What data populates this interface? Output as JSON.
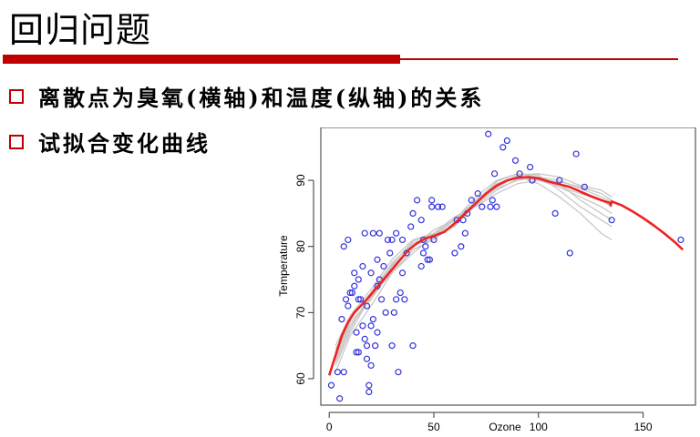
{
  "slide": {
    "title": "回归问题",
    "bullets": [
      "离散点为臭氧(横轴)和温度(纵轴)的关系",
      "试拟合变化曲线"
    ]
  },
  "colors": {
    "accent": "#c00000",
    "points": "#3333dd",
    "fit": "#ee2222",
    "bootstrap": "#c8c8c8"
  },
  "chart_data": {
    "type": "scatter",
    "xlabel": "Ozone",
    "ylabel": "Temperature",
    "xlim": [
      -4,
      175
    ],
    "ylim": [
      56,
      98
    ],
    "xticks": [
      0,
      50,
      100,
      150
    ],
    "yticks": [
      60,
      70,
      80,
      90
    ],
    "points": [
      [
        1,
        59
      ],
      [
        4,
        61
      ],
      [
        5,
        57
      ],
      [
        6,
        69
      ],
      [
        7,
        61
      ],
      [
        7,
        80
      ],
      [
        8,
        72
      ],
      [
        9,
        81
      ],
      [
        9,
        71
      ],
      [
        10,
        73
      ],
      [
        11,
        73
      ],
      [
        12,
        74
      ],
      [
        12,
        76
      ],
      [
        13,
        64
      ],
      [
        13,
        67
      ],
      [
        14,
        72
      ],
      [
        14,
        75
      ],
      [
        14,
        64
      ],
      [
        15,
        72
      ],
      [
        16,
        68
      ],
      [
        16,
        77
      ],
      [
        17,
        66
      ],
      [
        17,
        82
      ],
      [
        18,
        65
      ],
      [
        18,
        71
      ],
      [
        18,
        63
      ],
      [
        19,
        59
      ],
      [
        19,
        58
      ],
      [
        20,
        62
      ],
      [
        20,
        68
      ],
      [
        20,
        76
      ],
      [
        21,
        69
      ],
      [
        21,
        82
      ],
      [
        22,
        65
      ],
      [
        23,
        67
      ],
      [
        23,
        74
      ],
      [
        23,
        78
      ],
      [
        24,
        75
      ],
      [
        24,
        82
      ],
      [
        25,
        72
      ],
      [
        26,
        77
      ],
      [
        27,
        70
      ],
      [
        28,
        81
      ],
      [
        29,
        79
      ],
      [
        30,
        81
      ],
      [
        30,
        65
      ],
      [
        31,
        70
      ],
      [
        32,
        82
      ],
      [
        32,
        72
      ],
      [
        33,
        61
      ],
      [
        34,
        73
      ],
      [
        35,
        76
      ],
      [
        35,
        81
      ],
      [
        36,
        72
      ],
      [
        37,
        79
      ],
      [
        39,
        83
      ],
      [
        40,
        65
      ],
      [
        40,
        85
      ],
      [
        42,
        87
      ],
      [
        44,
        84
      ],
      [
        44,
        77
      ],
      [
        45,
        81
      ],
      [
        45,
        79
      ],
      [
        46,
        80
      ],
      [
        47,
        78
      ],
      [
        48,
        78
      ],
      [
        49,
        86
      ],
      [
        49,
        87
      ],
      [
        50,
        81
      ],
      [
        52,
        86
      ],
      [
        54,
        86
      ],
      [
        60,
        79
      ],
      [
        61,
        84
      ],
      [
        63,
        80
      ],
      [
        64,
        84
      ],
      [
        65,
        82
      ],
      [
        66,
        85
      ],
      [
        68,
        87
      ],
      [
        71,
        88
      ],
      [
        73,
        86
      ],
      [
        76,
        97
      ],
      [
        77,
        86
      ],
      [
        78,
        87
      ],
      [
        79,
        91
      ],
      [
        80,
        86
      ],
      [
        83,
        95
      ],
      [
        85,
        96
      ],
      [
        89,
        93
      ],
      [
        91,
        91
      ],
      [
        96,
        92
      ],
      [
        97,
        90
      ],
      [
        108,
        85
      ],
      [
        110,
        90
      ],
      [
        115,
        79
      ],
      [
        118,
        94
      ],
      [
        122,
        89
      ],
      [
        135,
        84
      ],
      [
        168,
        81
      ]
    ],
    "fit": [
      [
        0,
        60.5
      ],
      [
        3,
        63.5
      ],
      [
        6,
        66.5
      ],
      [
        9,
        68.5
      ],
      [
        12,
        70
      ],
      [
        15,
        71
      ],
      [
        18,
        72
      ],
      [
        22,
        73.5
      ],
      [
        26,
        75
      ],
      [
        30,
        76.5
      ],
      [
        34,
        78
      ],
      [
        38,
        79.5
      ],
      [
        42,
        80.5
      ],
      [
        46,
        81.2
      ],
      [
        50,
        81.6
      ],
      [
        55,
        82.2
      ],
      [
        60,
        83.5
      ],
      [
        65,
        85
      ],
      [
        70,
        86.5
      ],
      [
        75,
        88
      ],
      [
        80,
        89.2
      ],
      [
        85,
        90
      ],
      [
        90,
        90.4
      ],
      [
        95,
        90.5
      ],
      [
        100,
        90.3
      ],
      [
        105,
        89.8
      ],
      [
        110,
        89.4
      ],
      [
        115,
        89
      ],
      [
        120,
        88.3
      ],
      [
        125,
        87.6
      ],
      [
        130,
        87
      ],
      [
        134,
        86.6
      ],
      [
        134.5,
        86.2
      ],
      [
        135,
        86.8
      ],
      [
        140,
        86.2
      ],
      [
        145,
        85.3
      ],
      [
        150,
        84.3
      ],
      [
        155,
        83.2
      ],
      [
        160,
        82
      ],
      [
        165,
        80.7
      ],
      [
        169,
        79.5
      ]
    ],
    "bootstrap_curves": [
      [
        [
          3,
          63
        ],
        [
          10,
          68
        ],
        [
          20,
          72
        ],
        [
          30,
          77
        ],
        [
          40,
          80
        ],
        [
          50,
          82
        ],
        [
          60,
          83
        ],
        [
          70,
          87
        ],
        [
          80,
          89.5
        ],
        [
          90,
          90.5
        ],
        [
          100,
          90
        ],
        [
          110,
          89
        ],
        [
          120,
          88
        ],
        [
          130,
          87
        ],
        [
          135,
          86
        ]
      ],
      [
        [
          3,
          64
        ],
        [
          10,
          69
        ],
        [
          20,
          73
        ],
        [
          30,
          77.5
        ],
        [
          40,
          80.5
        ],
        [
          50,
          81.5
        ],
        [
          60,
          84
        ],
        [
          70,
          86.5
        ],
        [
          80,
          88.8
        ],
        [
          90,
          90
        ],
        [
          100,
          90.5
        ],
        [
          110,
          90
        ],
        [
          120,
          88.8
        ],
        [
          130,
          87.5
        ],
        [
          135,
          86.8
        ]
      ],
      [
        [
          3,
          62
        ],
        [
          10,
          67
        ],
        [
          20,
          72.5
        ],
        [
          30,
          76
        ],
        [
          40,
          79.5
        ],
        [
          50,
          81
        ],
        [
          60,
          83.5
        ],
        [
          70,
          87
        ],
        [
          80,
          89
        ],
        [
          90,
          90.6
        ],
        [
          100,
          89.5
        ],
        [
          110,
          87.5
        ],
        [
          120,
          85
        ],
        [
          130,
          82
        ],
        [
          135,
          81
        ]
      ],
      [
        [
          3,
          65
        ],
        [
          10,
          69.5
        ],
        [
          20,
          73.5
        ],
        [
          30,
          78
        ],
        [
          40,
          81
        ],
        [
          50,
          82
        ],
        [
          60,
          84.5
        ],
        [
          70,
          86
        ],
        [
          80,
          88
        ],
        [
          90,
          89.5
        ],
        [
          100,
          90
        ],
        [
          110,
          89.8
        ],
        [
          120,
          89
        ],
        [
          130,
          88
        ],
        [
          135,
          87
        ]
      ],
      [
        [
          3,
          61
        ],
        [
          10,
          66.5
        ],
        [
          20,
          71
        ],
        [
          30,
          76
        ],
        [
          40,
          79
        ],
        [
          50,
          81.5
        ],
        [
          60,
          83
        ],
        [
          70,
          86.8
        ],
        [
          80,
          89.8
        ],
        [
          90,
          91
        ],
        [
          100,
          90.8
        ],
        [
          110,
          88.5
        ],
        [
          120,
          86
        ],
        [
          130,
          84
        ],
        [
          135,
          83
        ]
      ],
      [
        [
          3,
          63.5
        ],
        [
          10,
          68.5
        ],
        [
          20,
          72
        ],
        [
          30,
          76.5
        ],
        [
          40,
          80
        ],
        [
          50,
          82.5
        ],
        [
          60,
          84
        ],
        [
          70,
          87.5
        ],
        [
          80,
          90
        ],
        [
          90,
          91
        ],
        [
          100,
          90.5
        ],
        [
          110,
          89.5
        ],
        [
          120,
          87
        ],
        [
          130,
          85
        ],
        [
          135,
          84
        ]
      ],
      [
        [
          3,
          62.5
        ],
        [
          10,
          67.5
        ],
        [
          20,
          73
        ],
        [
          30,
          77
        ],
        [
          40,
          80.2
        ],
        [
          50,
          81.2
        ],
        [
          60,
          83.2
        ],
        [
          70,
          86.2
        ],
        [
          80,
          88.5
        ],
        [
          90,
          90.2
        ],
        [
          100,
          90.2
        ],
        [
          110,
          89
        ],
        [
          120,
          87.5
        ],
        [
          130,
          86
        ],
        [
          135,
          85
        ]
      ],
      [
        [
          3,
          64.5
        ],
        [
          10,
          68
        ],
        [
          20,
          72.2
        ],
        [
          30,
          77.2
        ],
        [
          40,
          80.8
        ],
        [
          50,
          81.8
        ],
        [
          60,
          84.2
        ],
        [
          70,
          86.8
        ],
        [
          80,
          89.2
        ],
        [
          90,
          90.8
        ],
        [
          100,
          91
        ],
        [
          110,
          90.5
        ],
        [
          120,
          89.2
        ],
        [
          130,
          88.5
        ],
        [
          135,
          87.5
        ]
      ]
    ]
  }
}
